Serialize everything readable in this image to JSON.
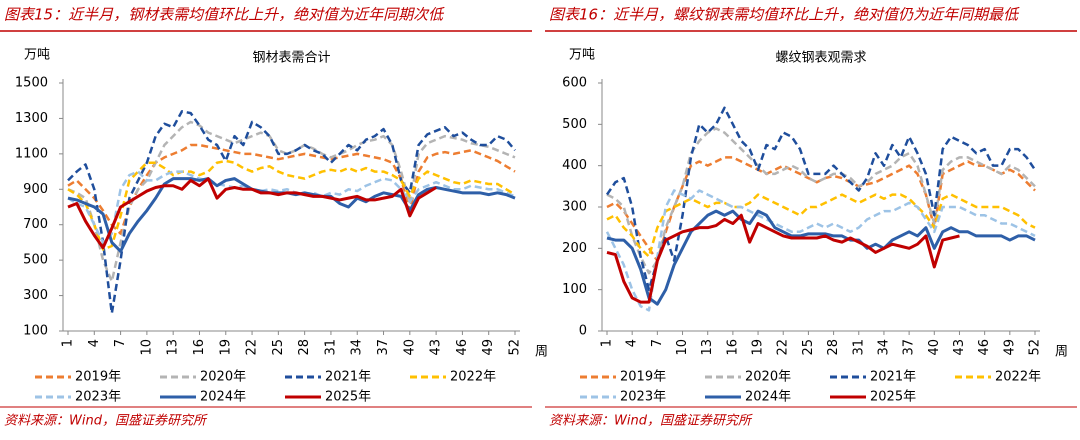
{
  "chart_data": [
    {
      "type": "line",
      "figure_title": "图表15：近半月，钢材表需均值环比上升，绝对值为近年同期次低",
      "title": "钢材表需合计",
      "y_unit": "万吨",
      "x_unit": "周",
      "source": "资料来源：Wind，国盛证券研究所",
      "x": [
        1,
        2,
        3,
        4,
        5,
        6,
        7,
        8,
        9,
        10,
        11,
        12,
        13,
        14,
        15,
        16,
        17,
        18,
        19,
        20,
        21,
        22,
        23,
        24,
        25,
        26,
        27,
        28,
        29,
        30,
        31,
        32,
        33,
        34,
        35,
        36,
        37,
        38,
        39,
        40,
        41,
        42,
        43,
        44,
        45,
        46,
        47,
        48,
        49,
        50,
        51,
        52
      ],
      "xlim": [
        1,
        52
      ],
      "xticks": [
        1,
        4,
        7,
        10,
        13,
        16,
        19,
        22,
        25,
        28,
        31,
        34,
        37,
        40,
        43,
        46,
        49,
        52
      ],
      "ylim": [
        100,
        1500
      ],
      "yticks": [
        100,
        300,
        500,
        700,
        900,
        1100,
        1300,
        1500
      ],
      "series": [
        {
          "name": "2019年",
          "color": "#ed7d31",
          "dashed": true,
          "values": [
            920,
            950,
            900,
            850,
            780,
            700,
            650,
            800,
            900,
            980,
            1050,
            1080,
            1100,
            1120,
            1150,
            1150,
            1140,
            1130,
            1120,
            1110,
            1100,
            1100,
            1090,
            1080,
            1070,
            1080,
            1090,
            1100,
            1090,
            1080,
            1070,
            1080,
            1090,
            1100,
            1090,
            1080,
            1070,
            1050,
            960,
            780,
            1000,
            1080,
            1100,
            1110,
            1100,
            1110,
            1120,
            1100,
            1080,
            1060,
            1030,
            1000
          ]
        },
        {
          "name": "2020年",
          "color": "#b4b4b4",
          "dashed": true,
          "values": [
            900,
            880,
            850,
            700,
            500,
            380,
            600,
            800,
            900,
            950,
            1050,
            1150,
            1200,
            1250,
            1280,
            1260,
            1220,
            1200,
            1180,
            1160,
            1180,
            1200,
            1220,
            1200,
            1120,
            1100,
            1120,
            1150,
            1130,
            1100,
            1080,
            1100,
            1120,
            1150,
            1170,
            1180,
            1200,
            1150,
            1000,
            820,
            1100,
            1160,
            1180,
            1200,
            1190,
            1180,
            1160,
            1150,
            1140,
            1120,
            1100,
            1080
          ]
        },
        {
          "name": "2021年",
          "color": "#1f4e9c",
          "dashed": true,
          "values": [
            950,
            1000,
            1040,
            900,
            600,
            200,
            500,
            850,
            950,
            1050,
            1200,
            1270,
            1250,
            1340,
            1330,
            1260,
            1180,
            1150,
            1060,
            1200,
            1150,
            1280,
            1250,
            1200,
            1100,
            1100,
            1120,
            1150,
            1120,
            1100,
            1050,
            1100,
            1150,
            1120,
            1180,
            1200,
            1240,
            1150,
            950,
            880,
            1150,
            1210,
            1230,
            1250,
            1200,
            1220,
            1180,
            1150,
            1150,
            1200,
            1180,
            1120
          ]
        },
        {
          "name": "2022年",
          "color": "#ffc000",
          "dashed": true,
          "values": [
            900,
            870,
            820,
            700,
            560,
            580,
            750,
            950,
            1000,
            1050,
            1050,
            1020,
            980,
            1000,
            1000,
            980,
            1000,
            1050,
            1060,
            1050,
            1020,
            1000,
            1020,
            1030,
            1000,
            980,
            970,
            960,
            980,
            1000,
            1010,
            1000,
            1020,
            1000,
            1020,
            1000,
            1000,
            980,
            950,
            860,
            960,
            1000,
            980,
            960,
            940,
            930,
            950,
            940,
            930,
            930,
            900,
            870
          ]
        },
        {
          "name": "2023年",
          "color": "#9dc3e6",
          "dashed": true,
          "values": [
            850,
            820,
            800,
            700,
            600,
            650,
            900,
            980,
            1000,
            950,
            950,
            980,
            1000,
            1000,
            980,
            960,
            950,
            930,
            920,
            910,
            920,
            900,
            890,
            900,
            890,
            900,
            880,
            870,
            880,
            860,
            880,
            870,
            900,
            890,
            920,
            940,
            960,
            950,
            900,
            830,
            900,
            920,
            940,
            920,
            900,
            900,
            920,
            910,
            900,
            900,
            880,
            860
          ]
        },
        {
          "name": "2024年",
          "color": "#2e5fa8",
          "dashed": false,
          "values": [
            850,
            840,
            820,
            800,
            760,
            600,
            550,
            650,
            720,
            780,
            850,
            930,
            960,
            960,
            960,
            950,
            960,
            920,
            950,
            960,
            930,
            900,
            890,
            880,
            880,
            880,
            870,
            880,
            870,
            860,
            860,
            820,
            800,
            850,
            830,
            860,
            880,
            870,
            860,
            780,
            870,
            900,
            910,
            900,
            890,
            880,
            880,
            880,
            870,
            880,
            870,
            850
          ]
        },
        {
          "name": "2025年",
          "color": "#c00000",
          "dashed": false,
          "values": [
            800,
            820,
            720,
            640,
            570,
            680,
            800,
            830,
            860,
            890,
            910,
            920,
            920,
            900,
            950,
            920,
            960,
            850,
            900,
            910,
            900,
            900,
            880,
            880,
            870,
            880,
            880,
            870,
            860,
            860,
            850,
            840,
            850,
            860,
            840,
            840,
            850,
            860,
            900,
            750,
            850,
            880,
            910,
            null,
            null,
            null,
            null,
            null,
            null,
            null,
            null,
            null
          ]
        }
      ]
    },
    {
      "type": "line",
      "figure_title": "图表16：近半月，螺纹钢表需均值环比上升，绝对值仍为近年同期最低",
      "title": "螺纹钢表观需求",
      "y_unit": "万吨",
      "x_unit": "周",
      "source": "资料来源：Wind，国盛证券研究所",
      "x": [
        1,
        2,
        3,
        4,
        5,
        6,
        7,
        8,
        9,
        10,
        11,
        12,
        13,
        14,
        15,
        16,
        17,
        18,
        19,
        20,
        21,
        22,
        23,
        24,
        25,
        26,
        27,
        28,
        29,
        30,
        31,
        32,
        33,
        34,
        35,
        36,
        37,
        38,
        39,
        40,
        41,
        42,
        43,
        44,
        45,
        46,
        47,
        48,
        49,
        50,
        51,
        52
      ],
      "xlim": [
        1,
        52
      ],
      "xticks": [
        1,
        4,
        7,
        10,
        13,
        16,
        19,
        22,
        25,
        28,
        31,
        34,
        37,
        40,
        43,
        46,
        49,
        52
      ],
      "ylim": [
        0,
        600
      ],
      "yticks": [
        0,
        100,
        200,
        300,
        400,
        500,
        600
      ],
      "series": [
        {
          "name": "2019年",
          "color": "#ed7d31",
          "dashed": true,
          "values": [
            300,
            310,
            290,
            260,
            230,
            200,
            170,
            240,
            300,
            350,
            400,
            410,
            400,
            410,
            420,
            420,
            410,
            400,
            390,
            380,
            390,
            400,
            390,
            380,
            370,
            360,
            370,
            375,
            370,
            360,
            350,
            355,
            360,
            370,
            380,
            390,
            400,
            380,
            330,
            250,
            380,
            390,
            400,
            410,
            400,
            400,
            390,
            380,
            390,
            380,
            360,
            340
          ]
        },
        {
          "name": "2020年",
          "color": "#b4b4b4",
          "dashed": true,
          "values": [
            330,
            320,
            300,
            230,
            180,
            140,
            170,
            250,
            300,
            350,
            430,
            460,
            480,
            490,
            480,
            460,
            440,
            420,
            400,
            380,
            380,
            390,
            400,
            390,
            370,
            360,
            370,
            380,
            380,
            370,
            350,
            360,
            380,
            390,
            400,
            420,
            430,
            400,
            330,
            260,
            390,
            410,
            420,
            420,
            410,
            400,
            390,
            380,
            400,
            390,
            370,
            350
          ]
        },
        {
          "name": "2021年",
          "color": "#1f4e9c",
          "dashed": true,
          "values": [
            330,
            360,
            370,
            300,
            180,
            100,
            170,
            230,
            170,
            280,
            420,
            500,
            480,
            500,
            540,
            500,
            460,
            440,
            390,
            450,
            440,
            480,
            470,
            440,
            380,
            380,
            380,
            400,
            380,
            360,
            340,
            370,
            430,
            400,
            450,
            420,
            470,
            430,
            380,
            280,
            440,
            470,
            460,
            450,
            430,
            440,
            400,
            400,
            440,
            440,
            420,
            390
          ]
        },
        {
          "name": "2022年",
          "color": "#ffc000",
          "dashed": true,
          "values": [
            270,
            280,
            250,
            230,
            200,
            180,
            250,
            290,
            300,
            310,
            320,
            310,
            300,
            310,
            310,
            300,
            300,
            310,
            330,
            320,
            310,
            300,
            290,
            280,
            300,
            300,
            310,
            320,
            330,
            320,
            310,
            320,
            330,
            320,
            330,
            330,
            320,
            300,
            280,
            250,
            320,
            330,
            320,
            310,
            300,
            300,
            300,
            300,
            290,
            280,
            260,
            250
          ]
        },
        {
          "name": "2023年",
          "color": "#9dc3e6",
          "dashed": true,
          "values": [
            240,
            200,
            160,
            100,
            60,
            50,
            180,
            300,
            340,
            330,
            320,
            340,
            330,
            320,
            310,
            300,
            300,
            290,
            280,
            270,
            260,
            250,
            240,
            240,
            250,
            260,
            250,
            260,
            250,
            240,
            250,
            270,
            280,
            290,
            290,
            300,
            310,
            300,
            270,
            240,
            300,
            300,
            300,
            290,
            280,
            280,
            270,
            260,
            260,
            250,
            240,
            230
          ]
        },
        {
          "name": "2024年",
          "color": "#2e5fa8",
          "dashed": false,
          "values": [
            225,
            220,
            220,
            200,
            150,
            80,
            65,
            100,
            160,
            200,
            240,
            260,
            280,
            290,
            280,
            290,
            270,
            260,
            290,
            280,
            250,
            240,
            230,
            230,
            235,
            235,
            235,
            230,
            230,
            220,
            220,
            200,
            210,
            200,
            220,
            230,
            240,
            230,
            250,
            200,
            240,
            250,
            240,
            240,
            230,
            230,
            230,
            230,
            220,
            230,
            230,
            220
          ]
        },
        {
          "name": "2025年",
          "color": "#c00000",
          "dashed": false,
          "values": [
            190,
            185,
            120,
            80,
            70,
            70,
            170,
            220,
            230,
            240,
            245,
            250,
            250,
            255,
            270,
            260,
            280,
            215,
            260,
            250,
            240,
            230,
            225,
            225,
            225,
            225,
            230,
            220,
            215,
            225,
            215,
            205,
            190,
            200,
            210,
            205,
            200,
            210,
            230,
            155,
            220,
            225,
            230,
            null,
            null,
            null,
            null,
            null,
            null,
            null,
            null,
            null
          ]
        }
      ]
    }
  ]
}
